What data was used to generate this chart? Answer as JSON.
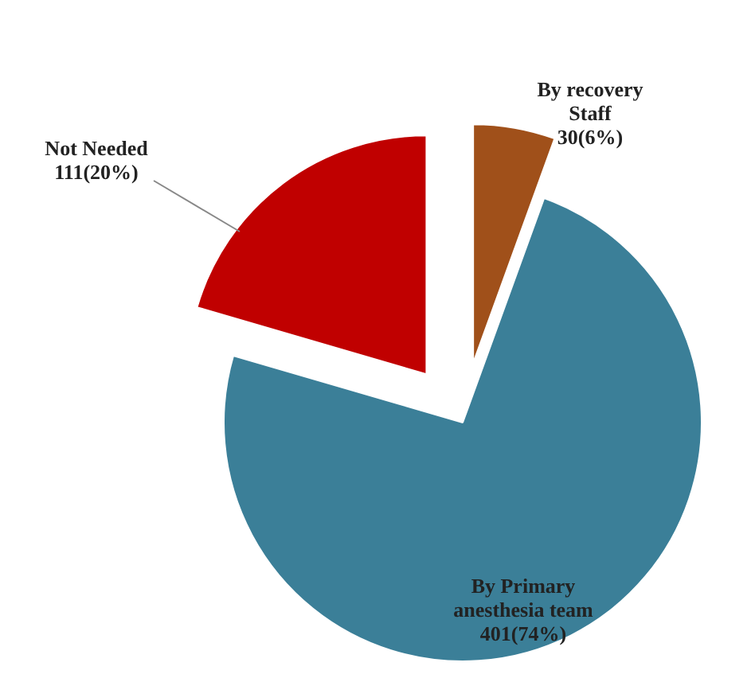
{
  "chart_data": {
    "type": "pie",
    "categories": [
      "By recovery\nStaff",
      "By Primary\nanesthesia team",
      "Not Needed"
    ],
    "values": [
      30,
      401,
      111
    ],
    "colors": [
      "#a0501a",
      "#3b7f98",
      "#c00000"
    ],
    "value_labels": [
      "30(6%)",
      "401(74%)",
      "111(20%)"
    ]
  }
}
